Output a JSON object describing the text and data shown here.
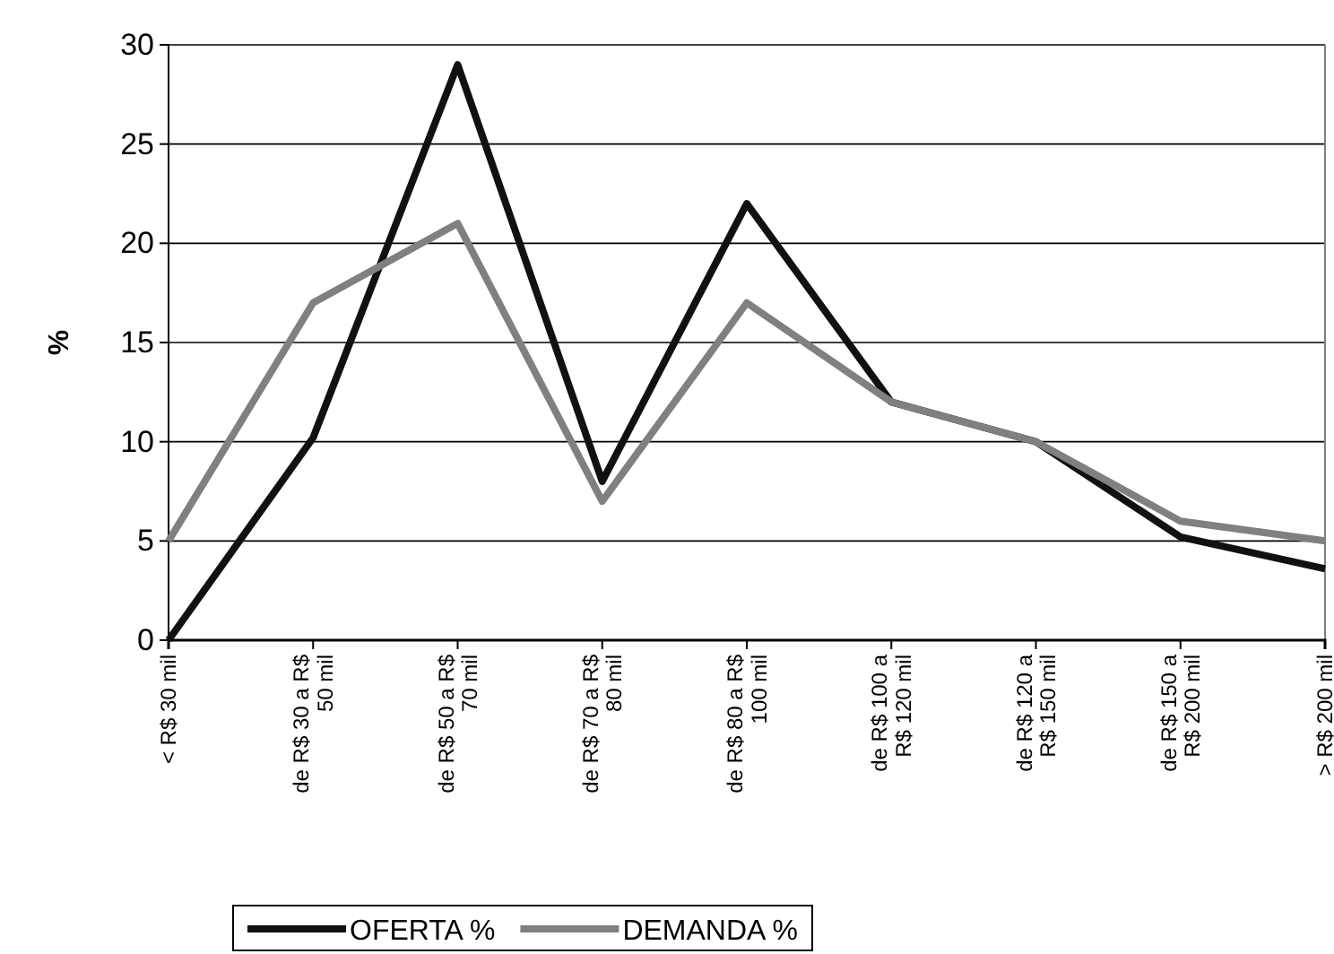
{
  "chart_data": {
    "type": "line",
    "ylabel": "%",
    "categories": [
      "< R$ 30 mil",
      "de R$ 30 a  R$ 50 mil",
      "de R$ 50 a  R$ 70 mil",
      "de R$ 70 a  R$ 80 mil",
      "de R$ 80 a  R$ 100 mil",
      "de R$ 100 a R$ 120 mil",
      "de R$ 120 a R$ 150 mil",
      "de R$ 150 a R$ 200 mil",
      "> R$ 200 mil"
    ],
    "series": [
      {
        "name": "OFERTA %",
        "color": "#111111",
        "values": [
          0,
          10.2,
          29,
          8,
          22,
          12,
          10,
          5.2,
          3.6
        ]
      },
      {
        "name": "DEMANDA %",
        "color": "#808080",
        "values": [
          5,
          17,
          21,
          7,
          17,
          12,
          10,
          6,
          5
        ]
      }
    ],
    "ylim": [
      0,
      30
    ],
    "yticks": [
      0,
      5,
      10,
      15,
      20,
      25,
      30
    ],
    "grid": "y",
    "legend": "bottom",
    "marker": "none",
    "line_style": "solid"
  }
}
